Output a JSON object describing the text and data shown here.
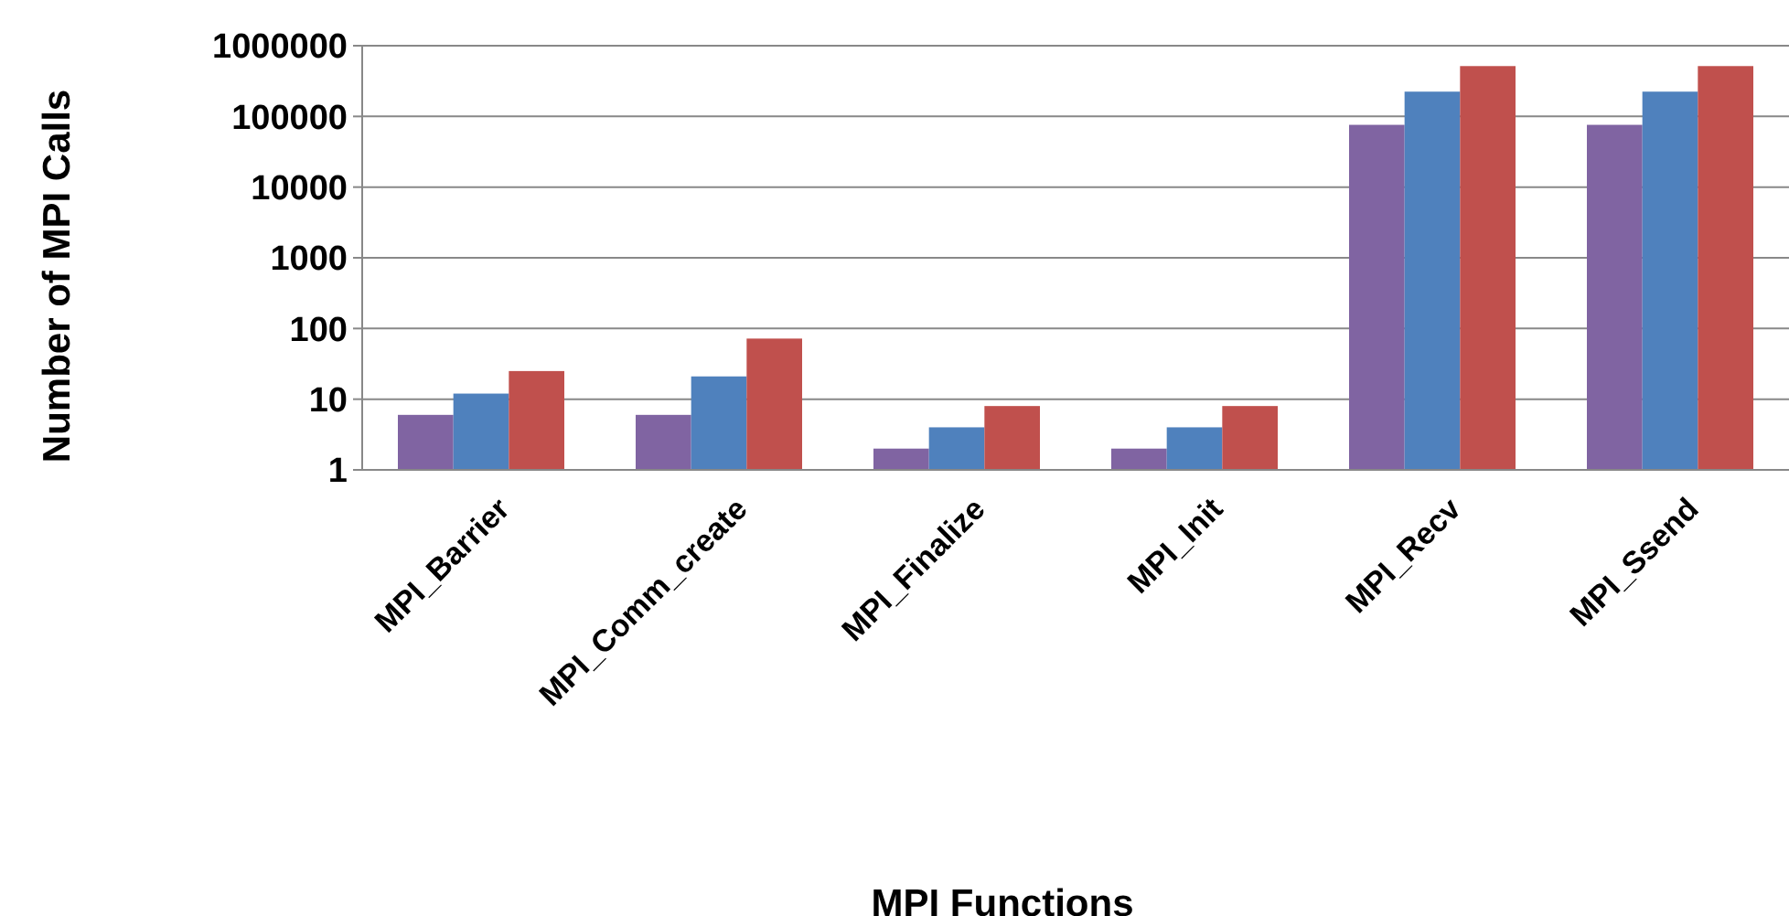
{
  "chart_data": {
    "type": "bar",
    "xlabel": "MPI Functions",
    "ylabel": "Number of MPI Calls",
    "categories": [
      "MPI_Barrier",
      "MPI_Comm_create",
      "MPI_Finalize",
      "MPI_Init",
      "MPI_Recv",
      "MPI_Ssend"
    ],
    "series": [
      {
        "color": "#8064a2",
        "values": [
          6,
          6,
          2,
          2,
          76000,
          76000
        ]
      },
      {
        "color": "#4f81bd",
        "values": [
          12,
          21,
          4,
          4,
          224000,
          224000
        ]
      },
      {
        "color": "#c0504d",
        "values": [
          25,
          72,
          8,
          8,
          515000,
          515000
        ]
      }
    ],
    "log": true,
    "ylim": [
      1,
      1000000
    ],
    "yticks": [
      1,
      10,
      100,
      1000,
      10000,
      100000,
      1000000
    ],
    "grid": "y"
  }
}
